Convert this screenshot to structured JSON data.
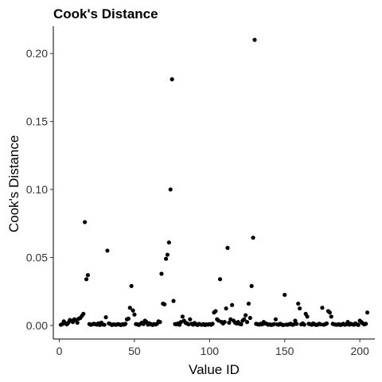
{
  "chart_data": {
    "type": "scatter",
    "title": "Cook's Distance",
    "xlabel": "Value ID",
    "ylabel": "Cook's Distance",
    "xlim": [
      -4,
      210
    ],
    "ylim": [
      -0.01,
      0.22
    ],
    "xticks": [
      0,
      50,
      100,
      150,
      200
    ],
    "yticks": [
      0.0,
      0.05,
      0.1,
      0.15,
      0.2
    ],
    "ytick_labels": [
      "0.00",
      "0.05",
      "0.10",
      "0.15",
      "0.20"
    ],
    "grid": false,
    "legend": "none",
    "marker_color": "#000000",
    "points": [
      [
        1,
        0.0005
      ],
      [
        2,
        0.001
      ],
      [
        3,
        0.003
      ],
      [
        4,
        0.0015
      ],
      [
        5,
        0.0008
      ],
      [
        6,
        0.002
      ],
      [
        7,
        0.004
      ],
      [
        8,
        0.0035
      ],
      [
        9,
        0.0025
      ],
      [
        10,
        0.0045
      ],
      [
        11,
        0.004
      ],
      [
        12,
        0.002
      ],
      [
        13,
        0.005
      ],
      [
        14,
        0.0055
      ],
      [
        15,
        0.007
      ],
      [
        16,
        0.0085
      ],
      [
        17,
        0.076
      ],
      [
        18,
        0.034
      ],
      [
        19,
        0.037
      ],
      [
        20,
        0.001
      ],
      [
        21,
        0.0005
      ],
      [
        22,
        0.0008
      ],
      [
        23,
        0.0012
      ],
      [
        24,
        0.0009
      ],
      [
        25,
        0.0006
      ],
      [
        26,
        0.0015
      ],
      [
        27,
        0.0004
      ],
      [
        28,
        0.002
      ],
      [
        29,
        0.0007
      ],
      [
        30,
        0.0005
      ],
      [
        31,
        0.006
      ],
      [
        32,
        0.055
      ],
      [
        33,
        0.0015
      ],
      [
        34,
        0.001
      ],
      [
        35,
        0.0004
      ],
      [
        36,
        0.0008
      ],
      [
        37,
        0.0006
      ],
      [
        38,
        0.0005
      ],
      [
        39,
        0.001
      ],
      [
        40,
        0.0007
      ],
      [
        41,
        0.0003
      ],
      [
        42,
        0.0009
      ],
      [
        43,
        0.0006
      ],
      [
        44,
        0.0012
      ],
      [
        45,
        0.0045
      ],
      [
        46,
        0.005
      ],
      [
        47,
        0.013
      ],
      [
        48,
        0.029
      ],
      [
        49,
        0.011
      ],
      [
        50,
        0.008
      ],
      [
        51,
        0.001
      ],
      [
        52,
        0.0008
      ],
      [
        53,
        0.0004
      ],
      [
        54,
        0.0012
      ],
      [
        55,
        0.002
      ],
      [
        56,
        0.001
      ],
      [
        57,
        0.0035
      ],
      [
        58,
        0.0025
      ],
      [
        59,
        0.0006
      ],
      [
        60,
        0.0015
      ],
      [
        61,
        0.0009
      ],
      [
        62,
        0.0004
      ],
      [
        63,
        0.001
      ],
      [
        64,
        0.0007
      ],
      [
        65,
        0.0012
      ],
      [
        66,
        0.003
      ],
      [
        67,
        0.0025
      ],
      [
        68,
        0.038
      ],
      [
        69,
        0.016
      ],
      [
        70,
        0.0155
      ],
      [
        71,
        0.049
      ],
      [
        72,
        0.052
      ],
      [
        73,
        0.061
      ],
      [
        74,
        0.1
      ],
      [
        75,
        0.181
      ],
      [
        76,
        0.018
      ],
      [
        77,
        0.001
      ],
      [
        78,
        0.0008
      ],
      [
        79,
        0.0015
      ],
      [
        80,
        0.0005
      ],
      [
        81,
        0.0025
      ],
      [
        82,
        0.0065
      ],
      [
        83,
        0.0035
      ],
      [
        84,
        0.002
      ],
      [
        85,
        0.0015
      ],
      [
        86,
        0.0008
      ],
      [
        87,
        0.0045
      ],
      [
        88,
        0.0012
      ],
      [
        89,
        0.0006
      ],
      [
        90,
        0.0018
      ],
      [
        91,
        0.0009
      ],
      [
        92,
        0.0004
      ],
      [
        93,
        0.0011
      ],
      [
        94,
        0.0007
      ],
      [
        95,
        0.0005
      ],
      [
        96,
        0.001
      ],
      [
        97,
        0.0003
      ],
      [
        98,
        0.0008
      ],
      [
        99,
        0.0006
      ],
      [
        100,
        0.001
      ],
      [
        101,
        0.0005
      ],
      [
        102,
        0.0012
      ],
      [
        103,
        0.0095
      ],
      [
        104,
        0.0105
      ],
      [
        105,
        0.0045
      ],
      [
        106,
        0.0035
      ],
      [
        107,
        0.034
      ],
      [
        108,
        0.0025
      ],
      [
        109,
        0.0015
      ],
      [
        110,
        0.0025
      ],
      [
        111,
        0.0125
      ],
      [
        112,
        0.057
      ],
      [
        113,
        0.002
      ],
      [
        114,
        0.0045
      ],
      [
        115,
        0.015
      ],
      [
        116,
        0.0035
      ],
      [
        117,
        0.002
      ],
      [
        118,
        0.0015
      ],
      [
        119,
        0.0025
      ],
      [
        120,
        0.0012
      ],
      [
        121,
        0.0008
      ],
      [
        122,
        0.0035
      ],
      [
        123,
        0.0045
      ],
      [
        124,
        0.0075
      ],
      [
        125,
        0.0025
      ],
      [
        126,
        0.016
      ],
      [
        127,
        0.0055
      ],
      [
        128,
        0.029
      ],
      [
        129,
        0.0645
      ],
      [
        130,
        0.21
      ],
      [
        131,
        0.0012
      ],
      [
        132,
        0.0009
      ],
      [
        133,
        0.0006
      ],
      [
        134,
        0.0012
      ],
      [
        135,
        0.0008
      ],
      [
        136,
        0.0025
      ],
      [
        137,
        0.0015
      ],
      [
        138,
        0.0012
      ],
      [
        139,
        0.0005
      ],
      [
        140,
        0.0008
      ],
      [
        141,
        0.0004
      ],
      [
        142,
        0.0006
      ],
      [
        143,
        0.001
      ],
      [
        144,
        0.0045
      ],
      [
        145,
        0.0008
      ],
      [
        146,
        0.0005
      ],
      [
        147,
        0.0012
      ],
      [
        148,
        0.0007
      ],
      [
        149,
        0.0003
      ],
      [
        150,
        0.0225
      ],
      [
        151,
        0.0006
      ],
      [
        152,
        0.0005
      ],
      [
        153,
        0.0009
      ],
      [
        154,
        0.0012
      ],
      [
        155,
        0.0005
      ],
      [
        156,
        0.0007
      ],
      [
        157,
        0.0035
      ],
      [
        158,
        0.0012
      ],
      [
        159,
        0.016
      ],
      [
        160,
        0.0125
      ],
      [
        161,
        0.0008
      ],
      [
        162,
        0.0015
      ],
      [
        163,
        0.0006
      ],
      [
        164,
        0.0085
      ],
      [
        165,
        0.0065
      ],
      [
        166,
        0.0012
      ],
      [
        167,
        0.0009
      ],
      [
        168,
        0.0005
      ],
      [
        169,
        0.0015
      ],
      [
        170,
        0.0008
      ],
      [
        171,
        0.0004
      ],
      [
        172,
        0.0006
      ],
      [
        173,
        0.0012
      ],
      [
        174,
        0.0008
      ],
      [
        175,
        0.013
      ],
      [
        176,
        0.0005
      ],
      [
        177,
        0.0009
      ],
      [
        178,
        0.0015
      ],
      [
        179,
        0.0105
      ],
      [
        180,
        0.0095
      ],
      [
        181,
        0.0065
      ],
      [
        182,
        0.0012
      ],
      [
        183,
        0.0008
      ],
      [
        184,
        0.0006
      ],
      [
        185,
        0.0005
      ],
      [
        186,
        0.0009
      ],
      [
        187,
        0.0004
      ],
      [
        188,
        0.0007
      ],
      [
        189,
        0.0012
      ],
      [
        190,
        0.0005
      ],
      [
        191,
        0.0008
      ],
      [
        192,
        0.0025
      ],
      [
        193,
        0.0006
      ],
      [
        194,
        0.0012
      ],
      [
        195,
        0.0008
      ],
      [
        196,
        0.0005
      ],
      [
        197,
        0.0015
      ],
      [
        198,
        0.0009
      ],
      [
        199,
        0.0004
      ],
      [
        200,
        0.0035
      ],
      [
        201,
        0.0025
      ],
      [
        202,
        0.0015
      ],
      [
        203,
        0.0008
      ],
      [
        204,
        0.0012
      ],
      [
        205,
        0.0095
      ]
    ]
  }
}
